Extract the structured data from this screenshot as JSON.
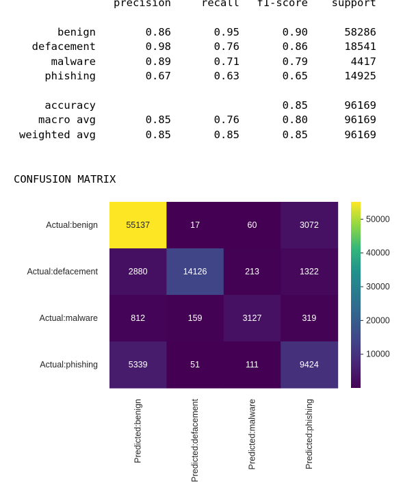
{
  "report": {
    "headers": [
      "precision",
      "recall",
      "f1-score",
      "support"
    ],
    "classes": [
      {
        "label": "benign",
        "precision": "0.86",
        "recall": "0.95",
        "f1": "0.90",
        "support": "58286"
      },
      {
        "label": "defacement",
        "precision": "0.98",
        "recall": "0.76",
        "f1": "0.86",
        "support": "18541"
      },
      {
        "label": "malware",
        "precision": "0.89",
        "recall": "0.71",
        "f1": "0.79",
        "support": "4417"
      },
      {
        "label": "phishing",
        "precision": "0.67",
        "recall": "0.63",
        "f1": "0.65",
        "support": "14925"
      }
    ],
    "summary": [
      {
        "label": "accuracy",
        "precision": "",
        "recall": "",
        "f1": "0.85",
        "support": "96169"
      },
      {
        "label": "macro avg",
        "precision": "0.85",
        "recall": "0.76",
        "f1": "0.80",
        "support": "96169"
      },
      {
        "label": "weighted avg",
        "precision": "0.85",
        "recall": "0.85",
        "f1": "0.85",
        "support": "96169"
      }
    ]
  },
  "confusion_title": "CONFUSION MATRIX",
  "chart_data": {
    "type": "heatmap",
    "title": "",
    "xlabel": "",
    "ylabel": "",
    "row_labels": [
      "Actual:benign",
      "Actual:defacement",
      "Actual:malware",
      "Actual:phishing"
    ],
    "col_labels": [
      "Predicted:benign",
      "Predicted:defacement",
      "Predicted:malware",
      "Predicted:phishing"
    ],
    "matrix": [
      [
        55137,
        17,
        60,
        3072
      ],
      [
        2880,
        14126,
        213,
        1322
      ],
      [
        812,
        159,
        3127,
        319
      ],
      [
        5339,
        51,
        111,
        9424
      ]
    ],
    "colormap": "viridis",
    "vmin": 17,
    "vmax": 55137,
    "colorbar_ticks": [
      10000,
      20000,
      30000,
      40000,
      50000
    ],
    "grid": false
  }
}
